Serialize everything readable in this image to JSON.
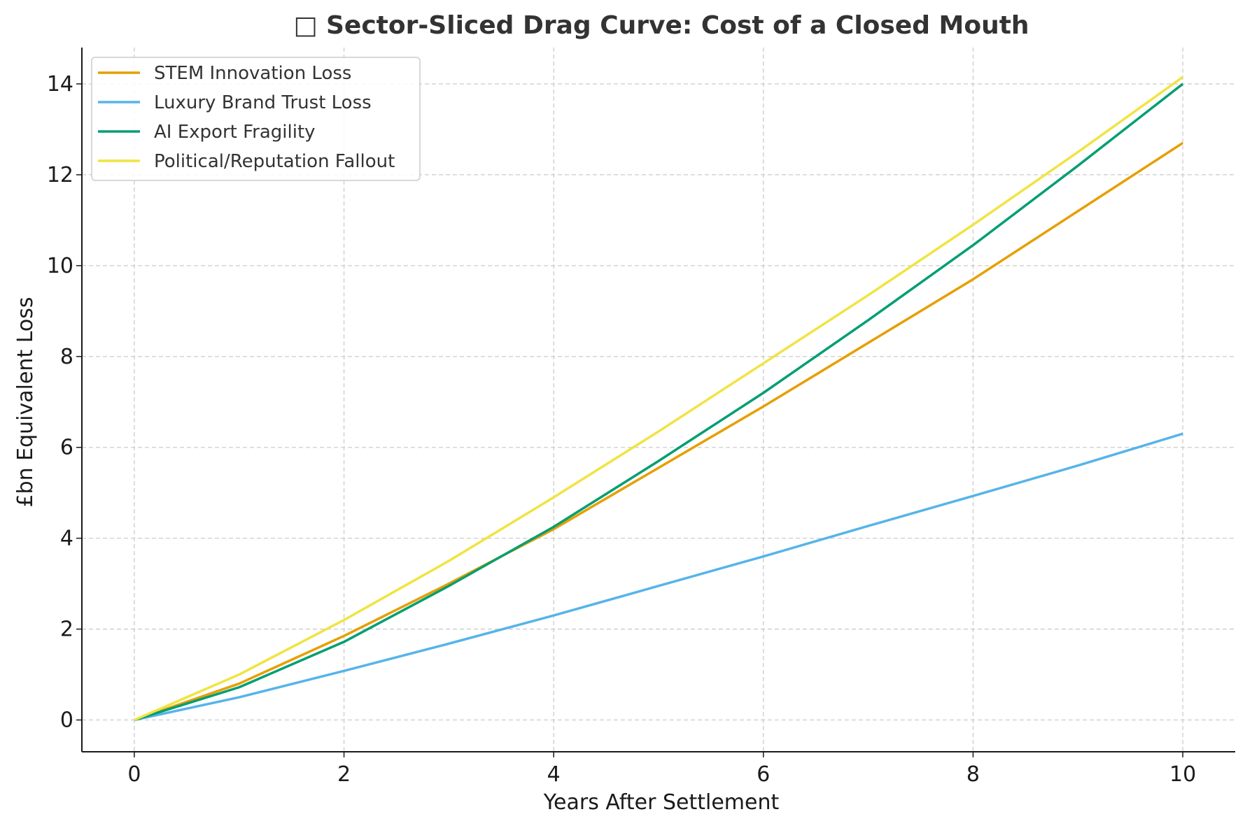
{
  "chart_data": {
    "type": "line",
    "title": "□ Sector-Sliced Drag Curve: Cost of a Closed Mouth",
    "xlabel": "Years After Settlement",
    "ylabel": "£bn Equivalent Loss",
    "xlim": [
      -0.5,
      10.5
    ],
    "ylim": [
      -0.7,
      14.8
    ],
    "x_ticks": [
      0,
      2,
      4,
      6,
      8,
      10
    ],
    "y_ticks": [
      0,
      2,
      4,
      6,
      8,
      10,
      12,
      14
    ],
    "grid": true,
    "legend_position": "upper-left",
    "x": [
      0,
      1,
      2,
      3,
      4,
      5,
      6,
      7,
      8,
      9,
      10
    ],
    "series": [
      {
        "name": "STEM Innovation Loss",
        "color": "#E69F00",
        "values": [
          0,
          0.8,
          1.85,
          3.0,
          4.2,
          5.55,
          6.9,
          8.3,
          9.7,
          11.2,
          12.7
        ]
      },
      {
        "name": "Luxury Brand Trust Loss",
        "color": "#56B4E9",
        "values": [
          0,
          0.5,
          1.08,
          1.68,
          2.3,
          2.95,
          3.6,
          4.27,
          4.93,
          5.6,
          6.3
        ]
      },
      {
        "name": "AI Export Fragility",
        "color": "#009E73",
        "values": [
          0,
          0.72,
          1.72,
          2.95,
          4.25,
          5.7,
          7.2,
          8.8,
          10.45,
          12.2,
          14.0
        ]
      },
      {
        "name": "Political/Reputation Fallout",
        "color": "#F0E442",
        "values": [
          0,
          1.0,
          2.2,
          3.5,
          4.9,
          6.35,
          7.85,
          9.35,
          10.9,
          12.5,
          14.15
        ]
      }
    ]
  }
}
